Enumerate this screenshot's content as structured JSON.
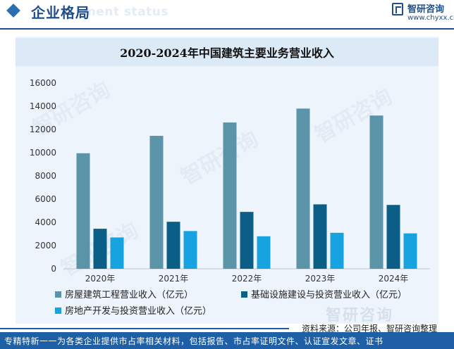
{
  "header": {
    "title": "企业格局",
    "subtitle_en": "ment status",
    "brand": "智研咨询",
    "site": "www.chyxx.com"
  },
  "watermark": "智研咨询",
  "chart_data": {
    "type": "bar",
    "title": "2020-2024年中国建筑主要业务营业收入",
    "categories": [
      "2020年",
      "2021年",
      "2022年",
      "2023年",
      "2024年"
    ],
    "series": [
      {
        "name": "房屋建筑工程营业收入（亿元）",
        "values": [
          9950,
          11450,
          12600,
          13800,
          13200
        ],
        "color": "#5b93a8"
      },
      {
        "name": "基础设施建设与投资营业收入（亿元）",
        "values": [
          3450,
          4050,
          4900,
          5550,
          5500
        ],
        "color": "#0b5f86"
      },
      {
        "name": "房地产开发与投资营业收入（亿元）",
        "values": [
          2700,
          3250,
          2800,
          3100,
          3050
        ],
        "color": "#16a3e0"
      }
    ],
    "yticks": [
      "0",
      "2000",
      "4000",
      "6000",
      "8000",
      "10000",
      "12000",
      "14000",
      "16000"
    ],
    "ylim": [
      0,
      16000
    ],
    "grid": false,
    "legend_position": "bottom"
  },
  "source": "资料来源：公司年报、智研咨询整理",
  "footer": "专精特新一一为各类企业提供市占率相关材料，包括报告、市占率证明文件、认证宣发文章、证书"
}
